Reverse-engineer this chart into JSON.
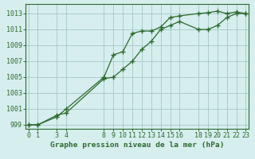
{
  "line1_x": [
    0,
    1,
    3,
    4,
    8,
    9,
    10,
    11,
    12,
    13,
    14,
    15,
    16,
    18,
    19,
    20,
    21,
    22,
    23
  ],
  "line1_y": [
    999.0,
    999.0,
    1000.0,
    1001.0,
    1005.0,
    1007.8,
    1008.2,
    1010.5,
    1010.8,
    1010.8,
    1011.3,
    1012.5,
    1012.7,
    1013.0,
    1013.1,
    1013.3,
    1013.0,
    1013.2,
    1013.0
  ],
  "line2_x": [
    0,
    1,
    3,
    4,
    8,
    9,
    10,
    11,
    12,
    13,
    14,
    15,
    16,
    18,
    19,
    20,
    21,
    22,
    23
  ],
  "line2_y": [
    999.0,
    999.0,
    1000.2,
    1000.5,
    1004.8,
    1005.0,
    1006.0,
    1007.0,
    1008.5,
    1009.5,
    1011.0,
    1011.5,
    1012.0,
    1011.0,
    1011.0,
    1011.5,
    1012.5,
    1013.0,
    1013.0
  ],
  "line_color": "#2d6a2d",
  "marker": "+",
  "background_color": "#d6eeee",
  "grid_color": "#aacccc",
  "xlabel": "Graphe pression niveau de la mer (hPa)",
  "yticks": [
    999,
    1001,
    1003,
    1005,
    1007,
    1009,
    1011,
    1013
  ],
  "xticks": [
    0,
    1,
    3,
    4,
    8,
    9,
    10,
    11,
    12,
    13,
    14,
    15,
    16,
    18,
    19,
    20,
    21,
    22,
    23
  ],
  "ylim": [
    998.5,
    1014.2
  ],
  "xlim": [
    -0.3,
    23.3
  ],
  "xlabel_fontsize": 6.8,
  "tick_fontsize": 6.0
}
